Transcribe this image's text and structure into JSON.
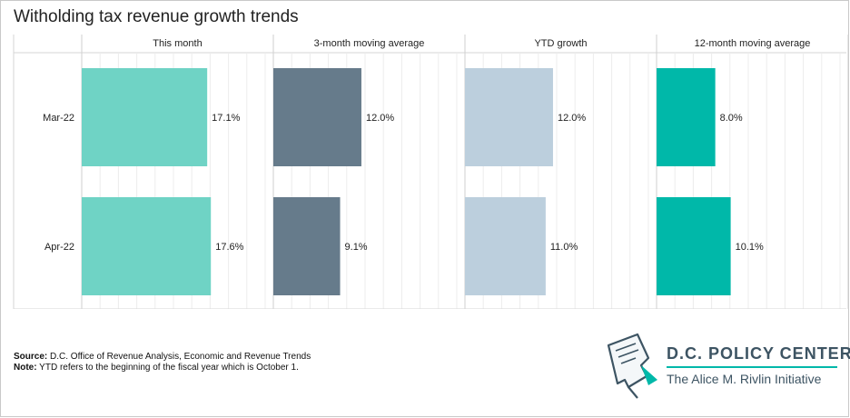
{
  "title": "Witholding tax revenue growth trends",
  "chart_data": {
    "type": "bar",
    "orientation": "horizontal",
    "categories": [
      "Mar-22",
      "Apr-22"
    ],
    "panels": [
      {
        "name": "This month",
        "color": "#6fd3c5",
        "values": [
          17.1,
          17.6
        ],
        "labels": [
          "17.1%",
          "17.6%"
        ]
      },
      {
        "name": "3-month moving average",
        "color": "#667b8b",
        "values": [
          12.0,
          9.1
        ],
        "labels": [
          "12.0%",
          "9.1%"
        ]
      },
      {
        "name": "YTD growth",
        "color": "#bccfdd",
        "values": [
          12.0,
          11.0
        ],
        "labels": [
          "12.0%",
          "11.0%"
        ]
      },
      {
        "name": "12-month moving average",
        "color": "#00b8a9",
        "values": [
          8.0,
          10.1
        ],
        "labels": [
          "8.0%",
          "10.1%"
        ]
      }
    ],
    "xlim": [
      0,
      25
    ],
    "grid": true
  },
  "footnote": {
    "source_label": "Source:",
    "source_text": " D.C. Office of Revenue Analysis, Economic and Revenue Trends",
    "note_label": "Note:",
    "note_text": " YTD refers to the beginning of the fiscal year which is October 1."
  },
  "logo": {
    "name": "D.C. POLICY CENTER",
    "subtitle": "The Alice M. Rivlin Initiative",
    "colors": {
      "text": "#3d5463",
      "accent": "#00b8a9"
    }
  }
}
